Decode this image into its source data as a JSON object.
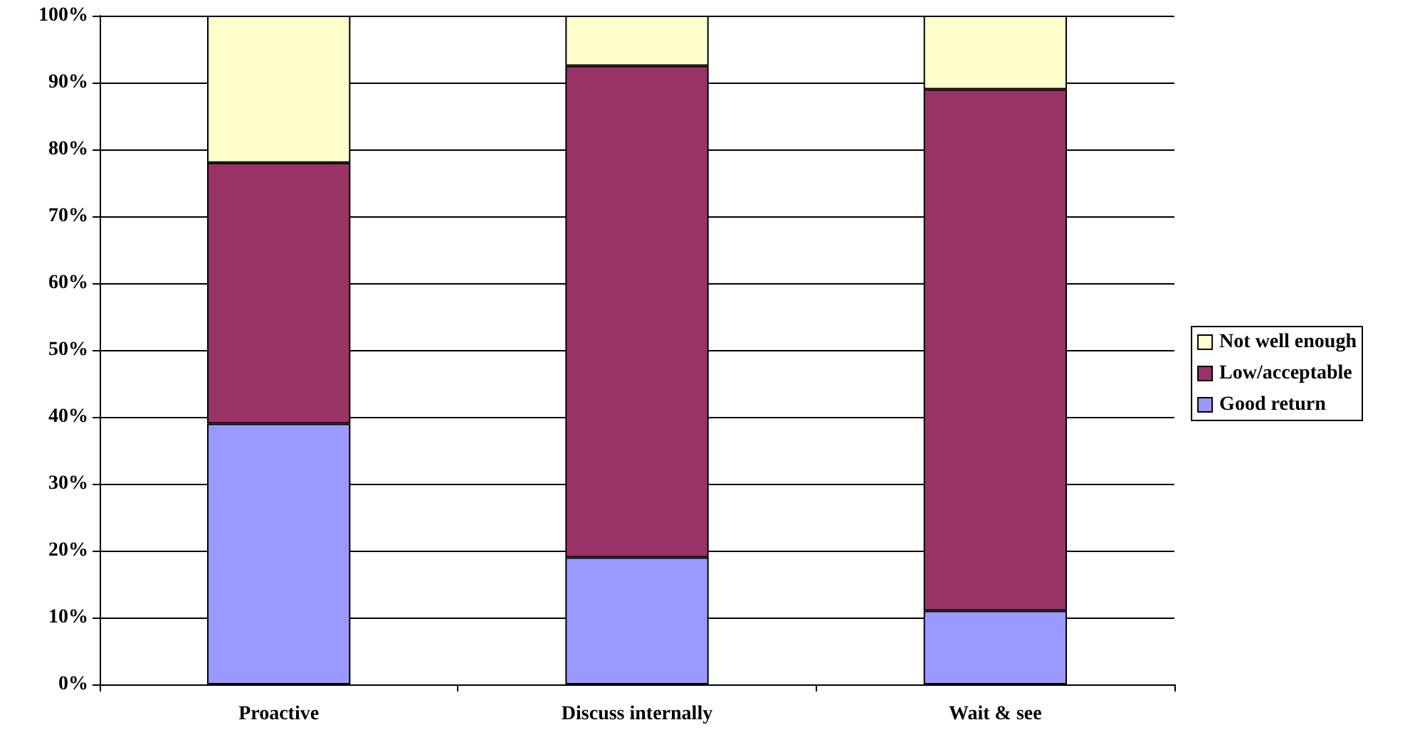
{
  "chart_data": {
    "type": "bar",
    "stacked": true,
    "categories": [
      "Proactive",
      "Discuss internally",
      "Wait & see"
    ],
    "series": [
      {
        "name": "Good return",
        "color": "#9999ff",
        "values": [
          39,
          19,
          11
        ]
      },
      {
        "name": "Low/acceptable",
        "color": "#993366",
        "values": [
          39,
          73.5,
          78
        ]
      },
      {
        "name": "Not well enough",
        "color": "#ffffcc",
        "values": [
          22,
          7.5,
          11
        ]
      }
    ],
    "ylim": [
      0,
      100
    ],
    "yticks": [
      {
        "value": 0,
        "label": "0%"
      },
      {
        "value": 10,
        "label": "10%"
      },
      {
        "value": 20,
        "label": "20%"
      },
      {
        "value": 30,
        "label": "30%"
      },
      {
        "value": 40,
        "label": "40%"
      },
      {
        "value": 50,
        "label": "50%"
      },
      {
        "value": 60,
        "label": "60%"
      },
      {
        "value": 70,
        "label": "70%"
      },
      {
        "value": 80,
        "label": "80%"
      },
      {
        "value": 90,
        "label": "90%"
      },
      {
        "value": 100,
        "label": "100%"
      }
    ],
    "grid": "y",
    "legend": "right",
    "marker": "square"
  }
}
